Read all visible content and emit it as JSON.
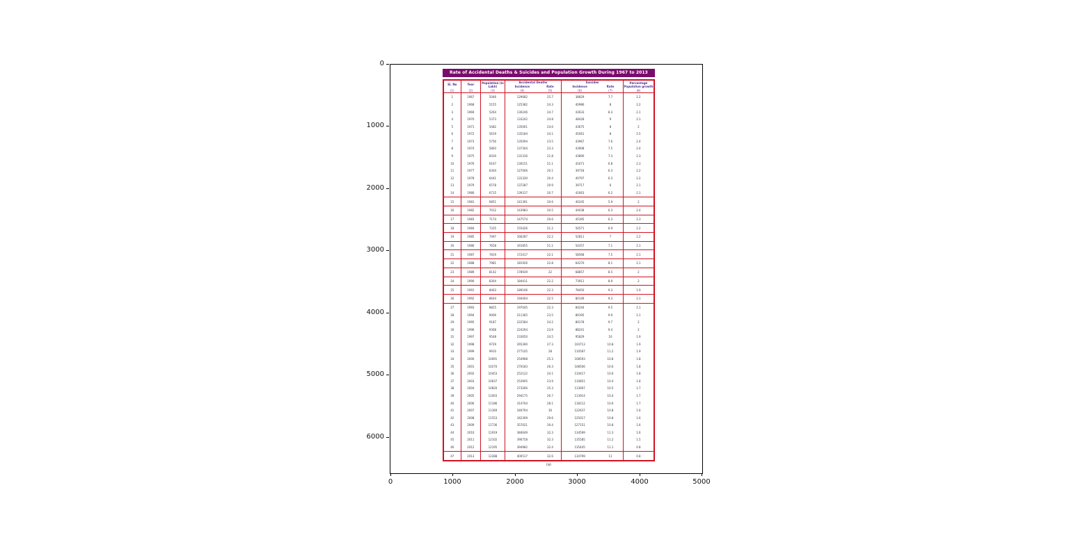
{
  "figure": {
    "x_ticks": [
      "0",
      "1000",
      "2000",
      "3000",
      "4000",
      "5000"
    ],
    "y_ticks": [
      "0",
      "1000",
      "2000",
      "3000",
      "4000",
      "5000",
      "6000"
    ]
  },
  "colors": {
    "title_bar_bg": "#7a0b6d",
    "table_rule_red": "#d01020",
    "header_text": "#4a2d8e",
    "axis_black": "#000000"
  },
  "chart_data": {
    "type": "table",
    "title": "Rate of Accidental Deaths & Suicides and Population Growth During 1967 to 2013",
    "caption": "(a)",
    "axis_ranges": {
      "x": [
        0,
        5000
      ],
      "y": [
        0,
        6570
      ]
    },
    "header": {
      "sl": "Sl. No",
      "year": "Year",
      "population": "Population (in Lakh)",
      "group_accidental": "Accidental Deaths",
      "group_suicides": "Suicides",
      "sub_incidence": "Incidence",
      "sub_rate": "Rate",
      "growth": "Percentage Population growth",
      "numbers": [
        "(1)",
        "(2)",
        "(3)",
        "(4)",
        "(5)",
        "(6)",
        "(7)",
        "(8)"
      ]
    },
    "rows": [
      [
        1,
        1967,
        5046,
        129682,
        25.7,
        38829,
        7.7,
        2.2
      ],
      [
        2,
        1968,
        5155,
        125382,
        24.3,
        40986,
        8.0,
        2.2
      ],
      [
        3,
        1969,
        5264,
        130246,
        24.7,
        43633,
        8.3,
        2.1
      ],
      [
        4,
        1970,
        5373,
        133242,
        24.8,
        48428,
        9.0,
        2.1
      ],
      [
        5,
        1971,
        5482,
        135001,
        24.6,
        43675,
        8.0,
        2.0
      ],
      [
        6,
        1972,
        5619,
        135184,
        24.1,
        45061,
        8.0,
        2.5
      ],
      [
        7,
        1973,
        5756,
        135094,
        23.5,
        43967,
        7.6,
        2.4
      ],
      [
        8,
        1974,
        5893,
        137304,
        23.3,
        43908,
        7.5,
        2.4
      ],
      [
        9,
        1975,
        6030,
        131316,
        21.8,
        43890,
        7.3,
        2.3
      ],
      [
        10,
        1976,
        6167,
        130151,
        21.1,
        41671,
        6.8,
        2.3
      ],
      [
        11,
        1977,
        6304,
        127006,
        20.1,
        39718,
        6.3,
        2.2
      ],
      [
        12,
        1978,
        6441,
        131330,
        20.4,
        40797,
        6.3,
        2.2
      ],
      [
        13,
        1979,
        6578,
        137287,
        20.9,
        39717,
        6.0,
        2.1
      ],
      [
        14,
        1980,
        6715,
        139317,
        20.7,
        41663,
        6.2,
        2.1
      ],
      [
        15,
        1981,
        6851,
        141391,
        20.6,
        40245,
        5.9,
        2.0
      ],
      [
        16,
        1982,
        7012,
        143983,
        20.5,
        44038,
        6.3,
        2.4
      ],
      [
        17,
        1983,
        7174,
        147574,
        20.6,
        45395,
        6.3,
        2.3
      ],
      [
        18,
        1984,
        7335,
        155426,
        21.2,
        50571,
        6.9,
        2.2
      ],
      [
        19,
        1985,
        7497,
        166287,
        22.2,
        52811,
        7.0,
        2.2
      ],
      [
        20,
        1986,
        7658,
        161855,
        21.1,
        54357,
        7.1,
        2.1
      ],
      [
        21,
        1987,
        7819,
        172417,
        22.1,
        58568,
        7.5,
        2.1
      ],
      [
        22,
        1988,
        7981,
        181926,
        22.8,
        64270,
        8.1,
        2.1
      ],
      [
        23,
        1989,
        8142,
        178939,
        22.0,
        68857,
        8.5,
        2.0
      ],
      [
        24,
        1990,
        8304,
        184411,
        22.2,
        73911,
        8.9,
        2.0
      ],
      [
        25,
        1991,
        8463,
        189106,
        22.3,
        78450,
        9.3,
        1.9
      ],
      [
        26,
        1992,
        8644,
        194404,
        22.5,
        80149,
        9.3,
        2.1
      ],
      [
        27,
        1993,
        8825,
        197045,
        22.3,
        84244,
        9.5,
        2.1
      ],
      [
        28,
        1994,
        9006,
        211365,
        23.5,
        89195,
        9.9,
        2.1
      ],
      [
        29,
        1995,
        9187,
        222584,
        24.2,
        89178,
        9.7,
        2.0
      ],
      [
        30,
        1996,
        9368,
        224294,
        23.9,
        88241,
        9.4,
        2.0
      ],
      [
        31,
        1997,
        9548,
        233650,
        24.5,
        95829,
        10.0,
        1.9
      ],
      [
        32,
        1998,
        9729,
        265390,
        27.3,
        104713,
        10.8,
        1.9
      ],
      [
        33,
        1999,
        9910,
        277105,
        28.0,
        110587,
        11.2,
        1.9
      ],
      [
        34,
        2000,
        10091,
        254968,
        25.3,
        108593,
        10.8,
        1.8
      ],
      [
        35,
        2001,
        10270,
        270183,
        26.3,
        108506,
        10.6,
        1.8
      ],
      [
        36,
        2002,
        10453,
        252122,
        24.1,
        110417,
        10.6,
        1.8
      ],
      [
        37,
        2003,
        10637,
        253905,
        23.9,
        110851,
        10.4,
        1.8
      ],
      [
        38,
        2004,
        10820,
        273266,
        25.3,
        113697,
        10.5,
        1.7
      ],
      [
        39,
        2005,
        11003,
        294175,
        26.7,
        113914,
        10.4,
        1.7
      ],
      [
        40,
        2006,
        11186,
        314704,
        28.1,
        118112,
        10.6,
        1.7
      ],
      [
        41,
        2007,
        11369,
        340794,
        30.0,
        122637,
        10.8,
        1.6
      ],
      [
        42,
        2008,
        11553,
        342309,
        29.6,
        125017,
        10.8,
        1.6
      ],
      [
        43,
        2009,
        11736,
        357021,
        30.4,
        127151,
        10.8,
        1.6
      ],
      [
        44,
        2010,
        11919,
        384649,
        32.3,
        134599,
        11.3,
        1.6
      ],
      [
        45,
        2011,
        12102,
        390758,
        32.3,
        135585,
        11.2,
        1.5
      ],
      [
        46,
        2012,
        12195,
        394982,
        32.4,
        135445,
        11.1,
        0.8
      ],
      [
        47,
        2013,
        12288,
        400517,
        32.6,
        134799,
        11.0,
        0.8
      ]
    ]
  }
}
